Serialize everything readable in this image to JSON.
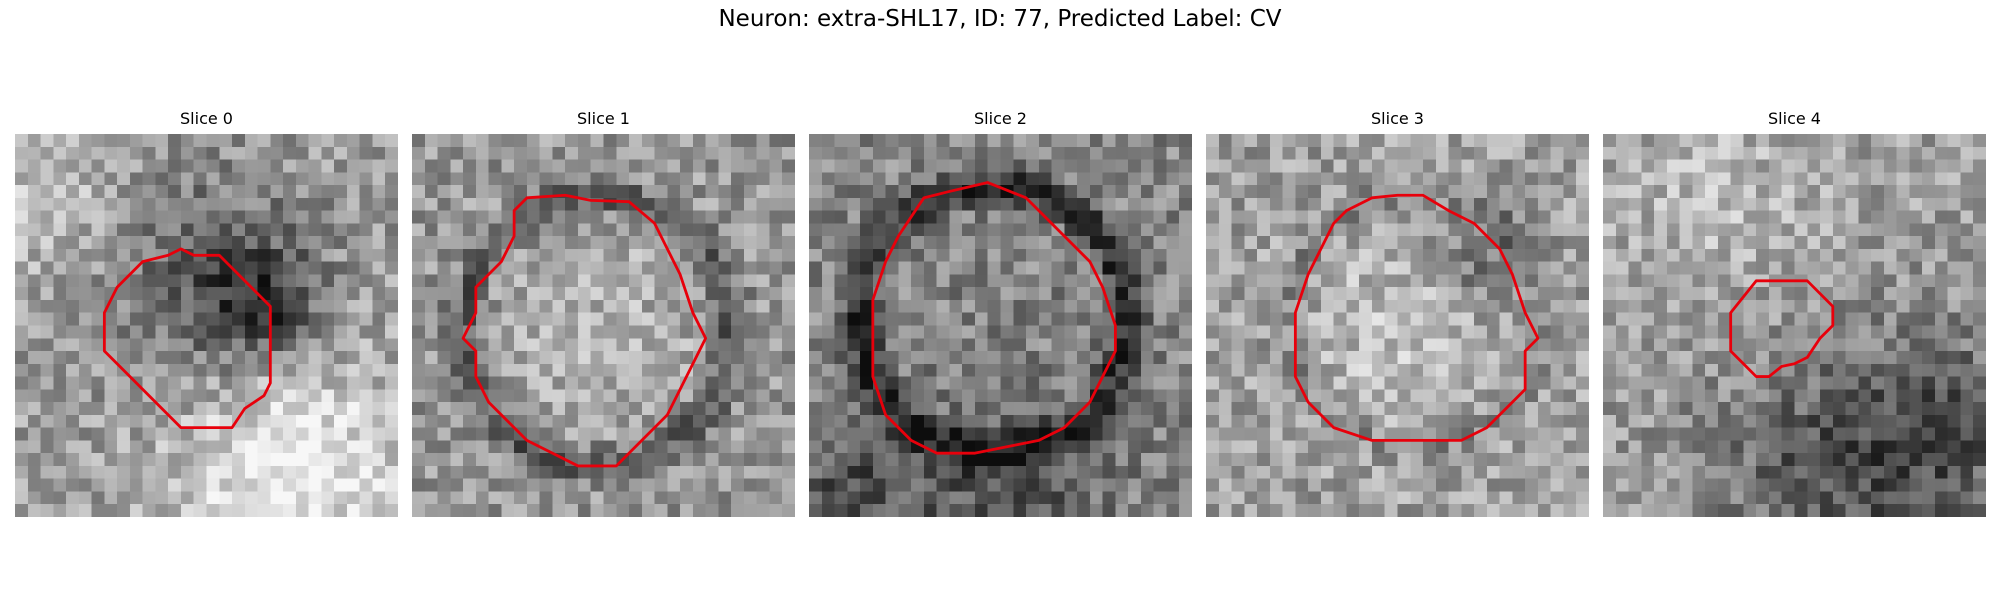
{
  "figure": {
    "title": "Neuron: extra-SHL17, ID: 77, Predicted Label: CV",
    "contour_color": "#e8000b",
    "grid_size": 30
  },
  "slices": [
    {
      "label": "Slice 0",
      "contour": [
        [
          13,
          9
        ],
        [
          14,
          9.5
        ],
        [
          16,
          9.5
        ],
        [
          20,
          13.5
        ],
        [
          20,
          19.5
        ],
        [
          19.5,
          20.5
        ],
        [
          18,
          21.5
        ],
        [
          17,
          23
        ],
        [
          13,
          23
        ],
        [
          8,
          18
        ],
        [
          7,
          17
        ],
        [
          7,
          14
        ],
        [
          8,
          12
        ],
        [
          10,
          10
        ],
        [
          12,
          9.5
        ]
      ]
    },
    {
      "label": "Slice 1",
      "contour": [
        [
          9,
          5
        ],
        [
          12,
          4.8
        ],
        [
          14,
          5.2
        ],
        [
          17,
          5.3
        ],
        [
          19,
          7
        ],
        [
          20,
          9
        ],
        [
          21,
          11
        ],
        [
          22,
          14
        ],
        [
          23,
          16
        ],
        [
          21,
          20
        ],
        [
          20,
          22
        ],
        [
          18,
          24
        ],
        [
          16,
          26
        ],
        [
          13,
          26
        ],
        [
          11,
          25
        ],
        [
          9,
          24
        ],
        [
          6,
          21
        ],
        [
          5,
          19
        ],
        [
          5,
          17
        ],
        [
          4,
          16
        ],
        [
          5,
          14
        ],
        [
          5,
          12
        ],
        [
          7,
          10
        ],
        [
          8,
          8
        ],
        [
          8,
          6
        ]
      ]
    },
    {
      "label": "Slice 2",
      "contour": [
        [
          9,
          5
        ],
        [
          11,
          4.5
        ],
        [
          14,
          3.8
        ],
        [
          17,
          5
        ],
        [
          19,
          7
        ],
        [
          20,
          8
        ],
        [
          22,
          10
        ],
        [
          23,
          12
        ],
        [
          24,
          15
        ],
        [
          24,
          17
        ],
        [
          23,
          19
        ],
        [
          22,
          21
        ],
        [
          20,
          23
        ],
        [
          18,
          24
        ],
        [
          13,
          25
        ],
        [
          10,
          25
        ],
        [
          8,
          24
        ],
        [
          6,
          22
        ],
        [
          5,
          19
        ],
        [
          5,
          16
        ],
        [
          5,
          13
        ],
        [
          6,
          10
        ],
        [
          7,
          8
        ]
      ]
    },
    {
      "label": "Slice 3",
      "contour": [
        [
          13,
          5
        ],
        [
          15,
          4.8
        ],
        [
          17,
          4.8
        ],
        [
          19,
          6
        ],
        [
          21,
          7
        ],
        [
          23,
          9
        ],
        [
          24,
          11
        ],
        [
          25,
          14
        ],
        [
          26,
          16
        ],
        [
          25,
          17
        ],
        [
          25,
          20
        ],
        [
          24,
          21
        ],
        [
          22,
          23
        ],
        [
          20,
          24
        ],
        [
          17,
          24
        ],
        [
          13,
          24
        ],
        [
          10,
          23
        ],
        [
          8,
          21
        ],
        [
          7,
          19
        ],
        [
          7,
          16
        ],
        [
          7,
          14
        ],
        [
          8,
          11
        ],
        [
          9,
          9
        ],
        [
          10,
          7
        ],
        [
          11,
          6
        ]
      ]
    },
    {
      "label": "Slice 4",
      "contour": [
        [
          12,
          11.5
        ],
        [
          14,
          11.5
        ],
        [
          16,
          11.5
        ],
        [
          18,
          13.5
        ],
        [
          18,
          15
        ],
        [
          17,
          16
        ],
        [
          16,
          17.5
        ],
        [
          15,
          18
        ],
        [
          14,
          18.2
        ],
        [
          13,
          19
        ],
        [
          12,
          19
        ],
        [
          11,
          18
        ],
        [
          10,
          17
        ],
        [
          10,
          14
        ]
      ]
    }
  ]
}
